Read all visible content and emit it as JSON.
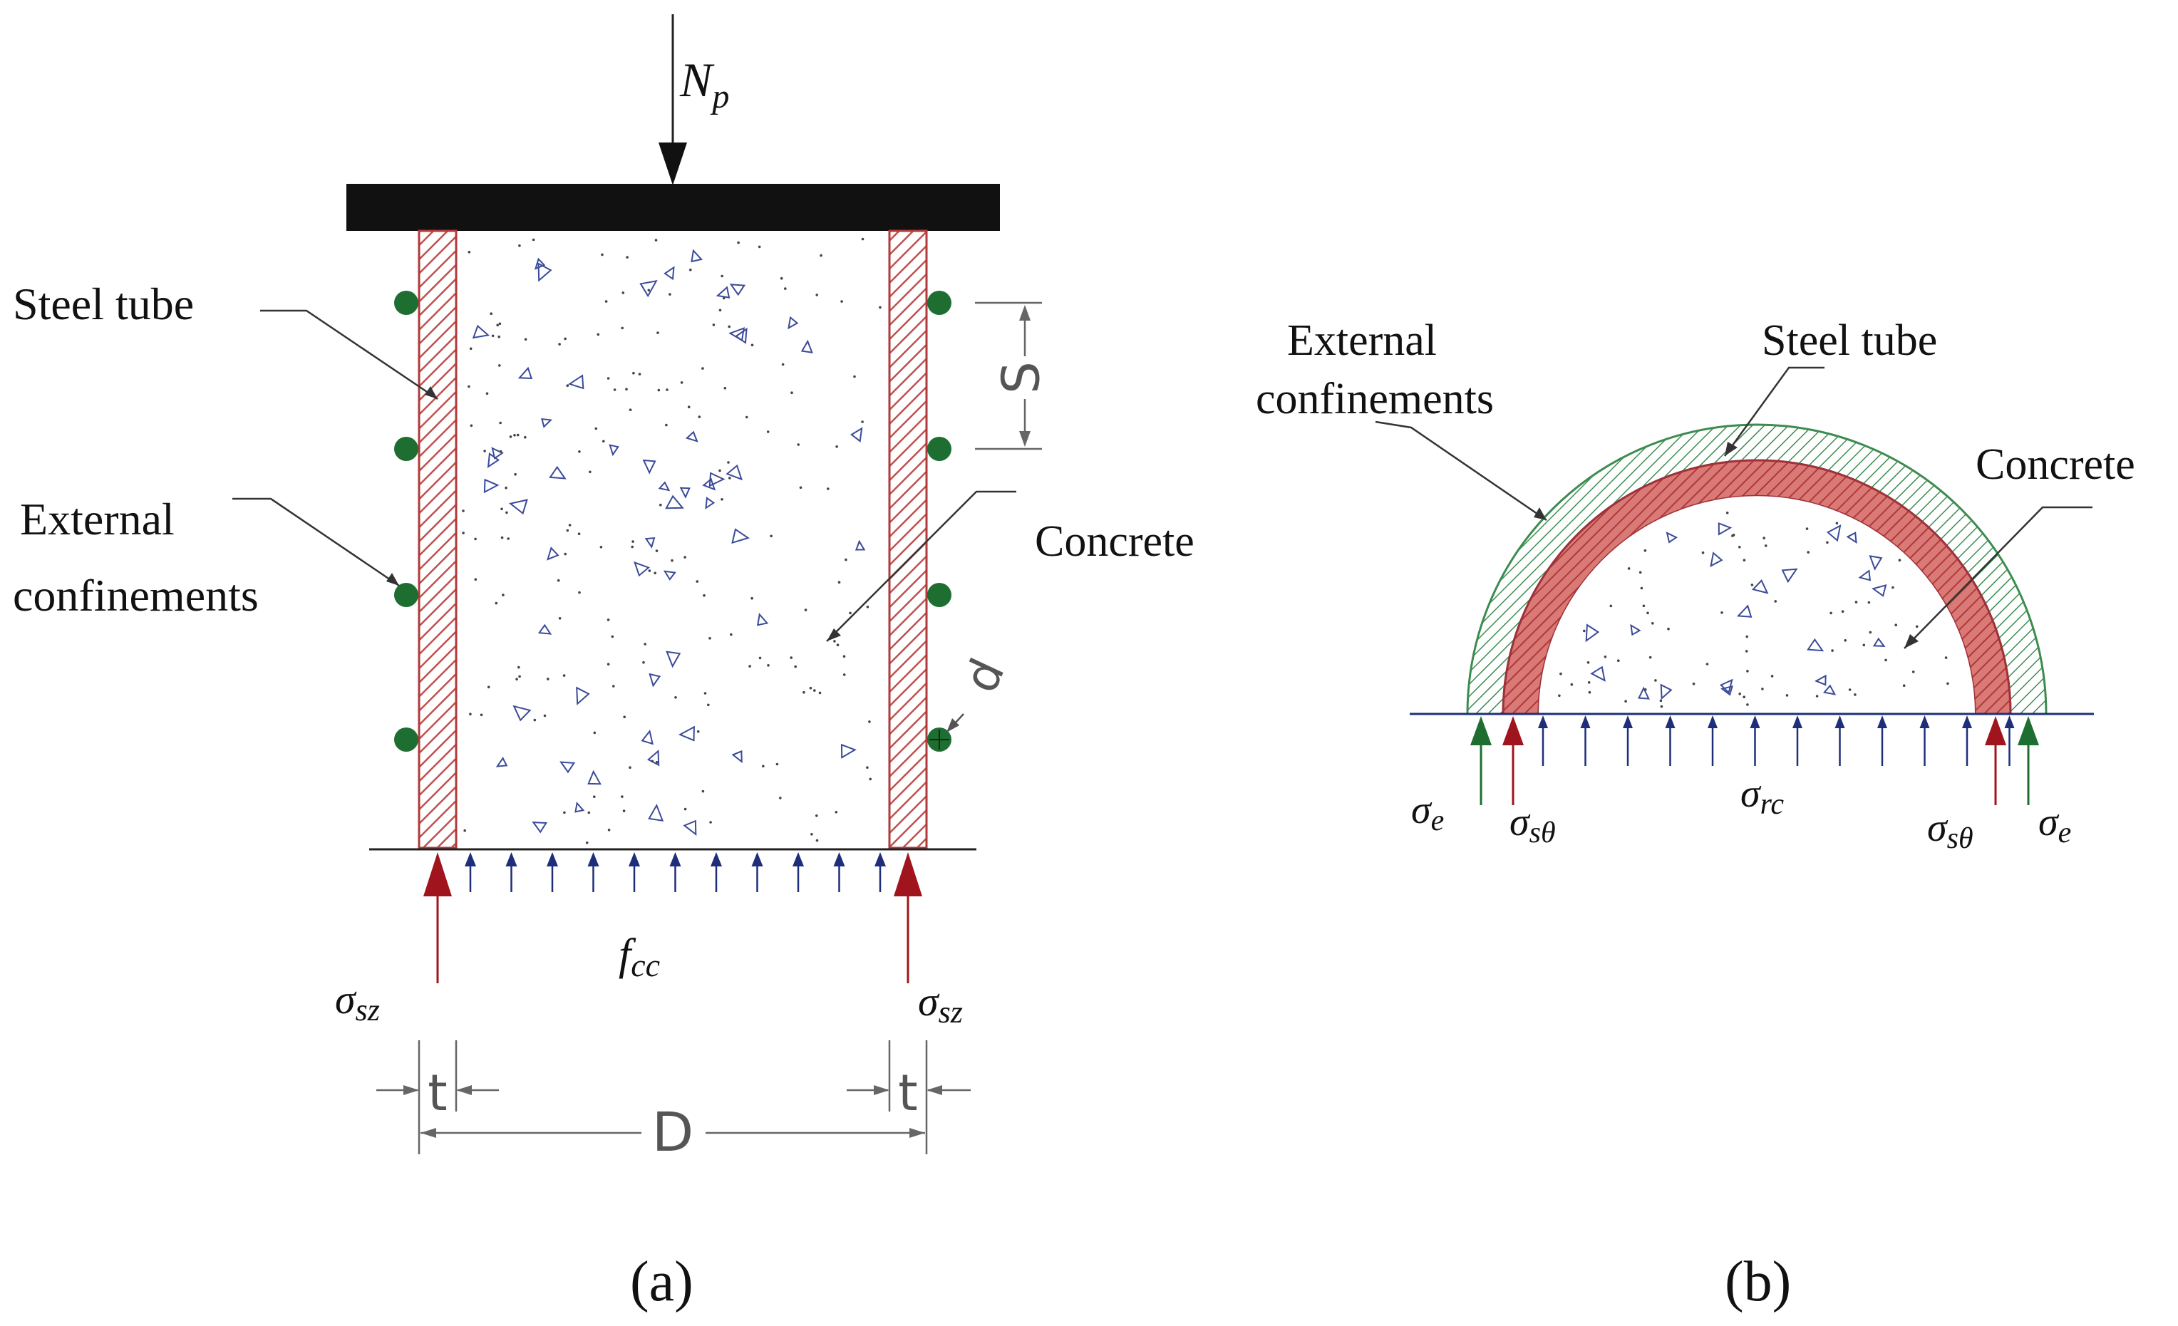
{
  "panel_a": {
    "caption": "(a)",
    "load_label": "N",
    "load_sub": "p",
    "steel_tube_label": "Steel tube",
    "external_label_line1": "External",
    "external_label_line2": "confinements",
    "concrete_label": "Concrete",
    "spacing_label": "S",
    "diameter_small_label": "d",
    "stress_steel_main": "σ",
    "stress_steel_sub": "sz",
    "stress_concrete_main": "f",
    "stress_concrete_sub": "cc",
    "thickness_label": "t",
    "diameter_label": "D"
  },
  "panel_b": {
    "caption": "(b)",
    "external_label_line1": "External",
    "external_label_line2": "confinements",
    "steel_tube_label": "Steel tube",
    "concrete_label": "Concrete",
    "stress_external_main": "σ",
    "stress_external_sub": "e",
    "stress_hoop_main": "σ",
    "stress_hoop_sub": "sθ",
    "stress_radial_main": "σ",
    "stress_radial_sub": "rc"
  },
  "colors": {
    "steel": "#c0504d",
    "steel_arrow": "#a0141e",
    "confinement_ring": "#3c8c50",
    "confinement_bar": "#1e6e32",
    "concrete_arrow": "#1f2e7a",
    "aggregate": "#3a4a9a"
  }
}
